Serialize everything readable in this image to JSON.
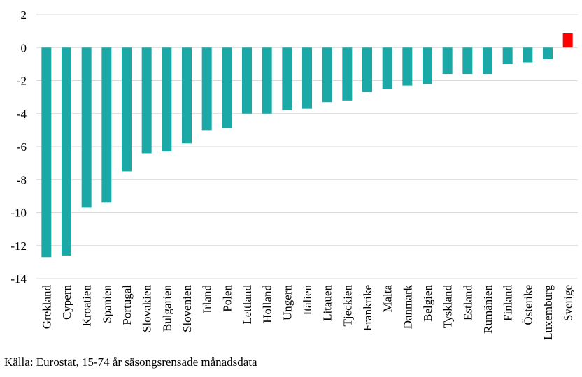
{
  "chart_data": {
    "type": "bar",
    "categories": [
      "Grekland",
      "Cypern",
      "Kroatien",
      "Spanien",
      "Portugal",
      "Slovakien",
      "Bulgarien",
      "Slovenien",
      "Irland",
      "Polen",
      "Lettland",
      "Holland",
      "Ungern",
      "Italien",
      "Litauen",
      "Tjeckien",
      "Frankrike",
      "Malta",
      "Danmark",
      "Belgien",
      "Tyskland",
      "Estland",
      "Rumänien",
      "Finland",
      "Österike",
      "Luxemburg",
      "Sverige"
    ],
    "values": [
      -12.7,
      -12.6,
      -9.7,
      -9.4,
      -7.5,
      -6.4,
      -6.3,
      -5.8,
      -5.0,
      -4.9,
      -4.0,
      -4.0,
      -3.8,
      -3.7,
      -3.3,
      -3.2,
      -2.7,
      -2.5,
      -2.3,
      -2.2,
      -1.6,
      -1.6,
      -1.6,
      -1.0,
      -0.9,
      -0.7,
      0.9
    ],
    "ylim": [
      -14,
      2
    ],
    "yticks": [
      2,
      0,
      -2,
      -4,
      -6,
      -8,
      -10,
      -12,
      -14
    ],
    "grid": true,
    "colors": {
      "default": "#1ba9a8",
      "highlight": "#ff0000",
      "grid": "#d9d9d9"
    },
    "highlight_category": "Sverige"
  },
  "source_note": "Källa: Eurostat, 15-74 år säsongsrensade månadsdata"
}
